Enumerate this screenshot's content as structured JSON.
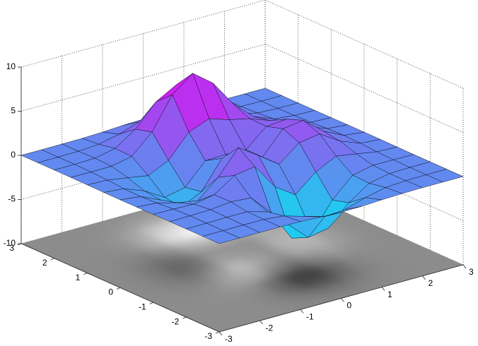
{
  "chart_data": {
    "type": "surface",
    "x": [
      -3,
      -2.5,
      -2,
      -1.5,
      -1,
      -0.5,
      0,
      0.5,
      1,
      1.5,
      2,
      2.5,
      3
    ],
    "y": [
      -3,
      -2.5,
      -2,
      -1.5,
      -1,
      -0.5,
      0,
      0.5,
      1,
      1.5,
      2,
      2.5,
      3
    ],
    "z": [
      [
        0,
        0,
        0,
        0,
        -0.03,
        -0.14,
        -0.24,
        -0.22,
        -0.11,
        -0.03,
        0,
        0,
        0
      ],
      [
        0,
        0,
        0.01,
        0,
        -0.23,
        -0.91,
        -1.57,
        -1.41,
        -0.69,
        -0.18,
        -0.03,
        0,
        0
      ],
      [
        0,
        0.01,
        0.05,
        0.05,
        -0.59,
        -2.64,
        -4.76,
        -4.35,
        -2.1,
        -0.53,
        -0.06,
        0,
        0
      ],
      [
        0,
        0.01,
        0.08,
        0.33,
        0.15,
        -2.19,
        -5.68,
        -5.76,
        -2.63,
        -0.44,
        0.04,
        0.03,
        0
      ],
      [
        -0.01,
        -0.06,
        -0.13,
        0.3,
        1.86,
        2.22,
        -0.72,
        -2.22,
        -0.27,
        0.88,
        0.5,
        0.11,
        0.01
      ],
      [
        -0.03,
        -0.2,
        -0.8,
        -1.21,
        0.8,
        3.55,
        2,
        0.39,
        2.2,
        2.56,
        1.12,
        0.24,
        0.03
      ],
      [
        -0.04,
        -0.3,
        -1.33,
        -2.77,
        -1.65,
        1.48,
        0.98,
        0.37,
        2.94,
        3.27,
        1.41,
        0.3,
        0.03
      ],
      [
        -0.03,
        -0.25,
        -1.12,
        -2.49,
        -2,
        0.39,
        0.46,
        0.37,
        2.38,
        2.56,
        1.09,
        0.23,
        0.03
      ],
      [
        -0.01,
        -0.11,
        -0.48,
        -0.86,
        0.23,
        2.79,
        3.69,
        2.93,
        2.43,
        1.58,
        0.58,
        0.11,
        0.01
      ],
      [
        0,
        -0.02,
        -0.01,
        0.48,
        2.61,
        6.2,
        8,
        6.25,
        3.25,
        1.19,
        0.29,
        0.05,
        0
      ],
      [
        0,
        0.01,
        0.08,
        0.55,
        2.1,
        4.56,
        5.86,
        4.57,
        2.21,
        0.68,
        0.13,
        0.02,
        0
      ],
      [
        0,
        0,
        0.03,
        0.19,
        0.69,
        1.47,
        1.88,
        1.47,
        0.7,
        0.2,
        0.04,
        0,
        0
      ],
      [
        0,
        0,
        0.01,
        0.03,
        0.11,
        0.23,
        0.3,
        0.23,
        0.11,
        0.03,
        0.01,
        0,
        0
      ]
    ],
    "xlim": [
      -3,
      3
    ],
    "ylim": [
      -3,
      3
    ],
    "zlim": [
      -10,
      10
    ],
    "xticks": [
      -3,
      -2,
      -1,
      0,
      1,
      2,
      3
    ],
    "yticks": [
      -3,
      -2,
      -1,
      0,
      1,
      2,
      3
    ],
    "zticks": [
      -10,
      -5,
      0,
      5,
      10
    ],
    "colormap": "cool",
    "contour_colormap": "gray",
    "grid": true
  }
}
